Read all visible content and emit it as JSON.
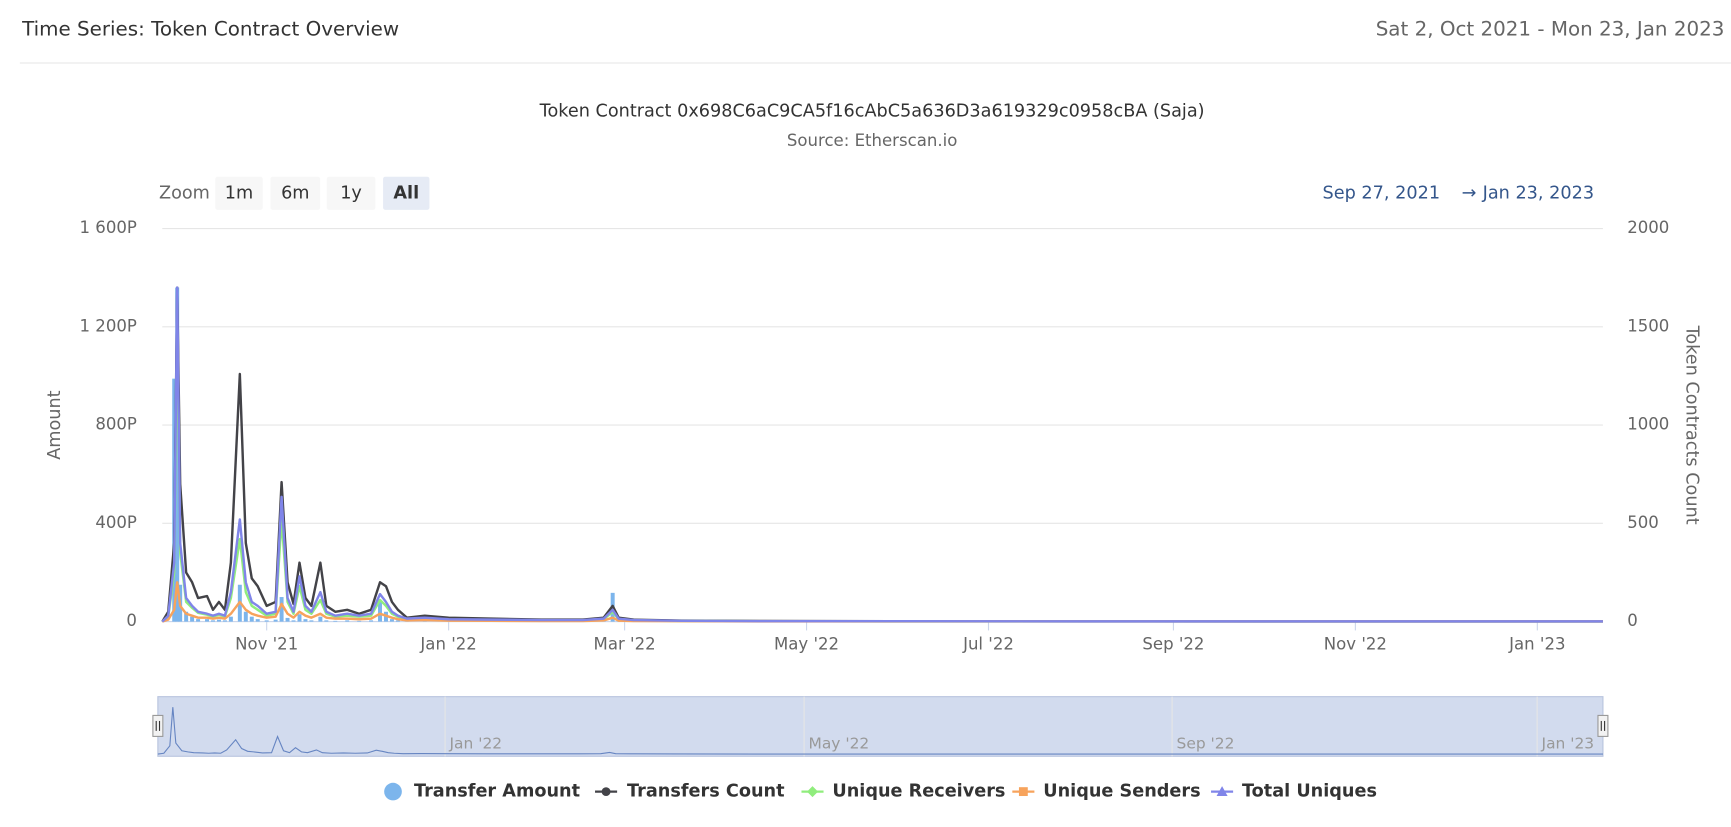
{
  "header": {
    "title": "Time Series: Token Contract Overview",
    "date_range": "Sat 2, Oct 2021 - Mon 23, Jan 2023"
  },
  "chart_data": {
    "type": "line",
    "title": "Token Contract 0x698C6aC9CA5f16cAbC5a636D3a619329c0958cBA (Saja)",
    "subtitle": "Source: Etherscan.io",
    "zoom": {
      "label": "Zoom",
      "buttons": [
        "1m",
        "6m",
        "1y",
        "All"
      ],
      "selected": 3
    },
    "range": {
      "from": "Sep 27, 2021",
      "arrow": "→",
      "to": "Jan 23, 2023"
    },
    "y_label": "Amount",
    "y2_label": "Token Contracts Count",
    "xlim": [
      "2021-09-27",
      "2023-01-23"
    ],
    "xticks": [
      {
        "value": "2021-11-01",
        "label": "Nov '21"
      },
      {
        "value": "2022-01-01",
        "label": "Jan '22"
      },
      {
        "value": "2022-03-01",
        "label": "Mar '22"
      },
      {
        "value": "2022-05-01",
        "label": "May '22"
      },
      {
        "value": "2022-07-01",
        "label": "Jul '22"
      },
      {
        "value": "2022-09-01",
        "label": "Sep '22"
      },
      {
        "value": "2022-11-01",
        "label": "Nov '22"
      },
      {
        "value": "2023-01-01",
        "label": "Jan '23"
      }
    ],
    "ylim": [
      0,
      1600
    ],
    "yticks": [
      0,
      {
        "value": 400,
        "label": "400P"
      },
      {
        "value": 800,
        "label": "800P"
      },
      {
        "value": 1200,
        "label": "1 200P"
      },
      {
        "value": 1600,
        "label": "1 600P"
      }
    ],
    "y2lim": [
      0,
      2000
    ],
    "y2ticks": [
      0,
      500,
      1000,
      1500,
      2000
    ],
    "grid": true,
    "navigator": {
      "xticks": [
        {
          "value": "2022-01-01",
          "label": "Jan '22"
        },
        {
          "value": "2022-05-01",
          "label": "May '22"
        },
        {
          "value": "2022-09-01",
          "label": "Sep '22"
        },
        {
          "value": "2023-01-01",
          "label": "Jan '23"
        }
      ]
    },
    "x": [
      "2021-09-27",
      "2021-09-29",
      "2021-10-01",
      "2021-10-02",
      "2021-10-03",
      "2021-10-05",
      "2021-10-07",
      "2021-10-09",
      "2021-10-12",
      "2021-10-14",
      "2021-10-16",
      "2021-10-18",
      "2021-10-20",
      "2021-10-23",
      "2021-10-25",
      "2021-10-27",
      "2021-10-29",
      "2021-11-01",
      "2021-11-04",
      "2021-11-06",
      "2021-11-08",
      "2021-11-10",
      "2021-11-12",
      "2021-11-14",
      "2021-11-16",
      "2021-11-19",
      "2021-11-21",
      "2021-11-24",
      "2021-11-28",
      "2021-12-02",
      "2021-12-06",
      "2021-12-09",
      "2021-12-11",
      "2021-12-13",
      "2021-12-15",
      "2021-12-18",
      "2021-12-24",
      "2022-01-01",
      "2022-01-15",
      "2022-02-01",
      "2022-02-15",
      "2022-02-22",
      "2022-02-25",
      "2022-02-27",
      "2022-03-04",
      "2022-03-20",
      "2022-04-15",
      "2022-06-01",
      "2022-08-01",
      "2022-10-01",
      "2022-12-01",
      "2023-01-23"
    ],
    "series": [
      {
        "name": "Transfer Amount",
        "type": "column",
        "marker": "circle",
        "color": "#7cb5ec",
        "axis": "y",
        "values": [
          0,
          0,
          989,
          1360,
          150,
          40,
          20,
          10,
          10,
          5,
          8,
          5,
          20,
          150,
          40,
          20,
          10,
          5,
          8,
          100,
          15,
          5,
          30,
          10,
          5,
          20,
          5,
          3,
          5,
          3,
          5,
          80,
          40,
          10,
          5,
          2,
          3,
          2,
          1,
          1,
          1,
          3,
          117,
          3,
          1,
          0,
          0,
          0,
          0,
          0,
          0,
          0
        ]
      },
      {
        "name": "Transfers Count",
        "type": "line",
        "marker": "circle",
        "color": "#434348",
        "axis": "y2",
        "values": [
          0,
          50,
          400,
          1700,
          700,
          250,
          200,
          120,
          130,
          60,
          100,
          60,
          300,
          1260,
          400,
          220,
          180,
          80,
          100,
          710,
          200,
          90,
          300,
          120,
          80,
          300,
          80,
          50,
          60,
          40,
          60,
          200,
          180,
          100,
          60,
          20,
          30,
          20,
          15,
          10,
          10,
          20,
          80,
          20,
          10,
          5,
          3,
          2,
          2,
          1,
          1,
          1
        ]
      },
      {
        "name": "Unique Receivers",
        "type": "line",
        "marker": "diamond",
        "color": "#90ed7d",
        "axis": "y2",
        "values": [
          0,
          25,
          250,
          1500,
          350,
          100,
          70,
          45,
          35,
          25,
          35,
          25,
          120,
          420,
          150,
          80,
          60,
          30,
          40,
          520,
          100,
          40,
          180,
          60,
          40,
          110,
          40,
          25,
          30,
          25,
          30,
          110,
          80,
          40,
          25,
          12,
          15,
          10,
          8,
          6,
          6,
          12,
          50,
          12,
          6,
          3,
          2,
          1,
          1,
          1,
          1,
          1
        ]
      },
      {
        "name": "Unique Senders",
        "type": "line",
        "marker": "square",
        "color": "#f7a35c",
        "axis": "y2",
        "values": [
          0,
          10,
          60,
          200,
          80,
          40,
          30,
          20,
          20,
          15,
          20,
          15,
          40,
          100,
          60,
          40,
          30,
          20,
          25,
          90,
          40,
          20,
          50,
          30,
          20,
          40,
          20,
          15,
          15,
          12,
          15,
          40,
          30,
          20,
          12,
          6,
          8,
          5,
          4,
          3,
          3,
          6,
          20,
          5,
          3,
          2,
          1,
          1,
          1,
          1,
          1,
          1
        ]
      },
      {
        "name": "Total Uniques",
        "type": "line",
        "marker": "triangle",
        "color": "#8085e9",
        "axis": "y2",
        "values": [
          0,
          30,
          300,
          1700,
          400,
          120,
          80,
          50,
          40,
          30,
          40,
          30,
          150,
          520,
          200,
          100,
          80,
          40,
          50,
          635,
          120,
          50,
          230,
          80,
          50,
          150,
          50,
          30,
          40,
          30,
          40,
          140,
          100,
          50,
          30,
          15,
          20,
          12,
          10,
          8,
          8,
          15,
          60,
          15,
          8,
          4,
          2,
          2,
          1,
          1,
          1,
          1
        ]
      }
    ]
  }
}
